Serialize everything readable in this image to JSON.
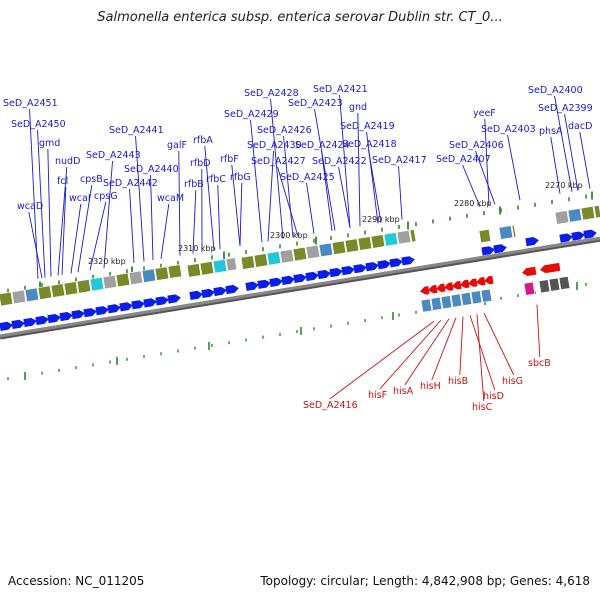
{
  "title": "Salmonella enterica subsp. enterica serovar Dublin str. CT_0...",
  "footer": {
    "accession": "Accession: NC_011205",
    "topology": "Topology: circular; Length: 4,842,908 bp; Genes: 4,618"
  },
  "colors": {
    "forward_gene": "#0a1ee6",
    "reverse_gene": "#e60a0a",
    "forward_label": "#1a1acc",
    "reverse_label": "#cc1111",
    "backbone": "#888888",
    "tick": "#2a8a2a",
    "cog_olive": "#7a8a28",
    "cog_cyan": "#22c8d8",
    "cog_steel": "#4a8ac0",
    "cog_gray": "#a0a0a0"
  },
  "kbp_labels": [
    "2320 kbp",
    "2310 kbp",
    "2300 kbp",
    "2290 kbp",
    "2280 kbp",
    "2270 kbp"
  ],
  "forward_genes": [
    "SeD_A2451",
    "SeD_A2450",
    "gmd",
    "nudD",
    "fcl",
    "cpsB",
    "wcaI",
    "cpsG",
    "wcaD",
    "SeD_A2443",
    "SeD_A2441",
    "SeD_A2442",
    "SeD_A2440",
    "wcaM",
    "galF",
    "rfbA",
    "rfbD",
    "rfbB",
    "rfbF",
    "rfbC",
    "SeD_A2428",
    "SeD_A2429",
    "SeD_A2430",
    "rfbG",
    "SeD_A2426",
    "SeD_A2427",
    "SeD_A2425",
    "SeD_A2421",
    "SeD_A2423",
    "gnd",
    "SeD_A2419",
    "SeD_A2424",
    "SeD_A2422",
    "SeD_A2418",
    "SeD_A2417",
    "yeeF",
    "SeD_A2406",
    "SeD_A2407",
    "SeD_A2403",
    "SeD_A2400",
    "SeD_A2399",
    "phsA",
    "dacD"
  ],
  "reverse_genes": [
    "SeD_A2416",
    "hisF",
    "hisA",
    "hisH",
    "hisB",
    "hisD",
    "hisC",
    "hisG",
    "sbcB"
  ]
}
